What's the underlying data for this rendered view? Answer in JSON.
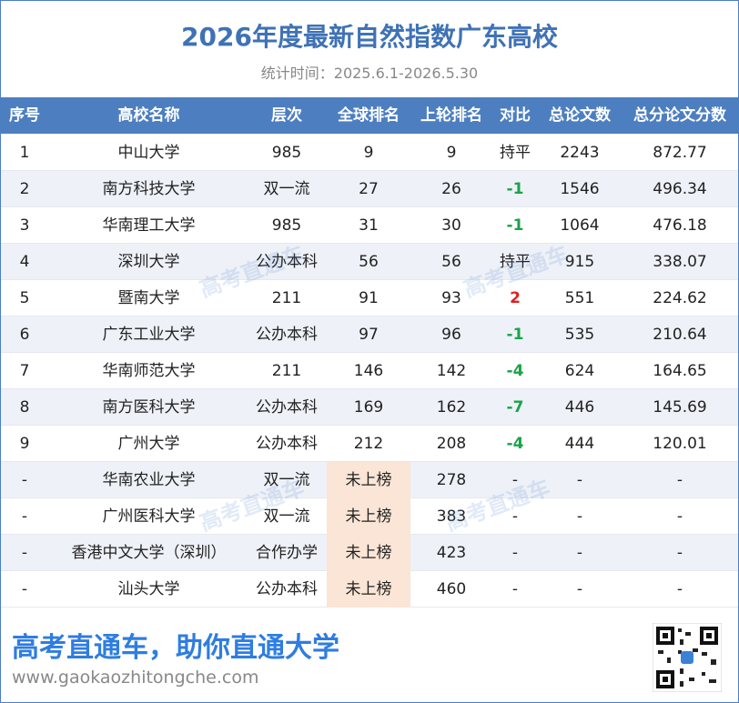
{
  "header": {
    "title": "2026年度最新自然指数广东高校",
    "subtitle": "统计时间：2025.6.1-2026.5.30"
  },
  "table": {
    "columns": [
      "序号",
      "高校名称",
      "层次",
      "全球排名",
      "上轮排名",
      "对比",
      "总论文数",
      "总分论文分数"
    ],
    "rows": [
      [
        "1",
        "中山大学",
        "985",
        "9",
        "9",
        "持平",
        "2243",
        "872.77"
      ],
      [
        "2",
        "南方科技大学",
        "双一流",
        "27",
        "26",
        "-1",
        "1546",
        "496.34"
      ],
      [
        "3",
        "华南理工大学",
        "985",
        "31",
        "30",
        "-1",
        "1064",
        "476.18"
      ],
      [
        "4",
        "深圳大学",
        "公办本科",
        "56",
        "56",
        "持平",
        "915",
        "338.07"
      ],
      [
        "5",
        "暨南大学",
        "211",
        "91",
        "93",
        "2",
        "551",
        "224.62"
      ],
      [
        "6",
        "广东工业大学",
        "公办本科",
        "97",
        "96",
        "-1",
        "535",
        "210.64"
      ],
      [
        "7",
        "华南师范大学",
        "211",
        "146",
        "142",
        "-4",
        "624",
        "164.65"
      ],
      [
        "8",
        "南方医科大学",
        "公办本科",
        "169",
        "162",
        "-7",
        "446",
        "145.69"
      ],
      [
        "9",
        "广州大学",
        "公办本科",
        "212",
        "208",
        "-4",
        "444",
        "120.01"
      ],
      [
        "-",
        "华南农业大学",
        "双一流",
        "未上榜",
        "278",
        "-",
        "-",
        "-"
      ],
      [
        "-",
        "广州医科大学",
        "双一流",
        "未上榜",
        "383",
        "-",
        "-",
        "-"
      ],
      [
        "-",
        "香港中文大学（深圳）",
        "合作办学",
        "未上榜",
        "423",
        "-",
        "-",
        "-"
      ],
      [
        "-",
        "汕头大学",
        "公办本科",
        "未上榜",
        "460",
        "-",
        "-",
        "-"
      ]
    ]
  },
  "watermark": "高考直通车",
  "footer": {
    "slogan": "高考直通车，助你直通大学",
    "url": "www.gaokaozhitongche.com"
  }
}
